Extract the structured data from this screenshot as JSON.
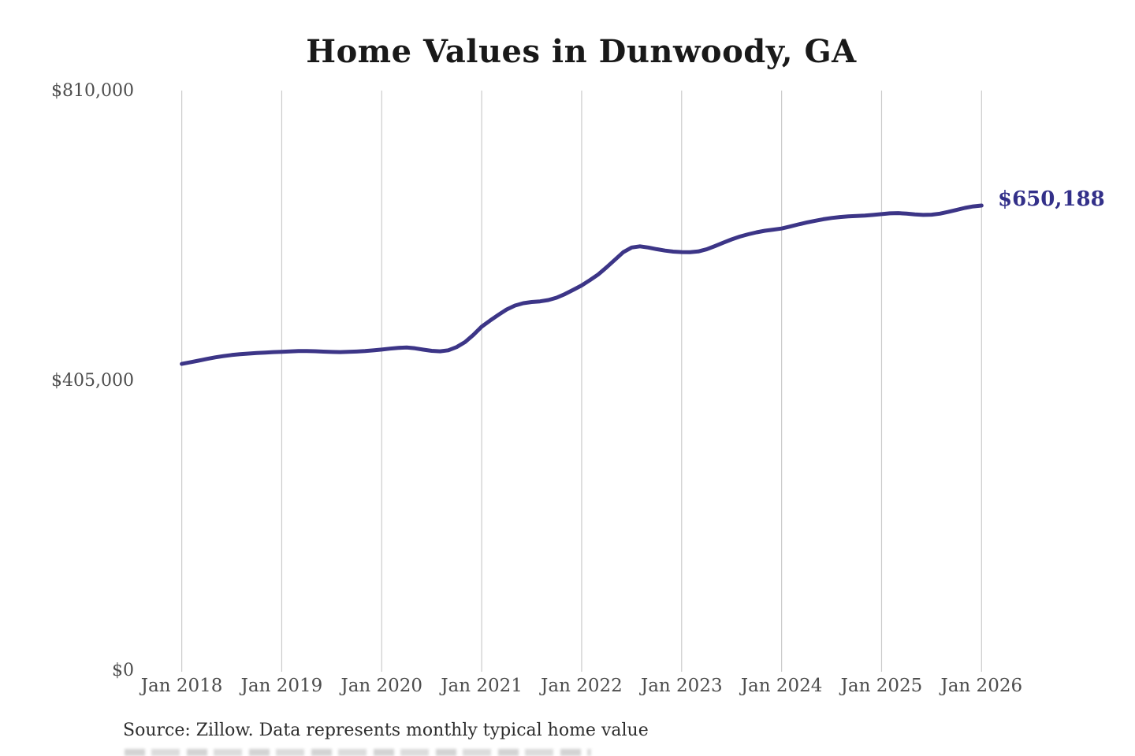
{
  "title": "Home Values in Dunwoody, GA",
  "annotation": {
    "latest_value_label": "$650,188"
  },
  "source_note": "Source: Zillow. Data represents monthly typical home value",
  "colors": {
    "background": "#ffffff",
    "line": "#3c3587",
    "annotation_text": "#333089",
    "gridline": "#cbcbcb",
    "title_text": "#191919",
    "axis_label_text": "#4d4d4d",
    "source_text": "#2e2e2e"
  },
  "chart_data": {
    "type": "line",
    "title": "Home Values in Dunwoody, GA",
    "xlabel": "",
    "ylabel": "",
    "frequency": "monthly",
    "x_start": "Jan 2018",
    "x_end": "Jan 2026",
    "x_tick_labels": [
      "Jan 2018",
      "Jan 2019",
      "Jan 2020",
      "Jan 2021",
      "Jan 2022",
      "Jan 2023",
      "Jan 2024",
      "Jan 2025",
      "Jan 2026"
    ],
    "y_ticks": [
      {
        "label": "$810,000",
        "value": 810000
      },
      {
        "label": "$405,000",
        "value": 405000
      },
      {
        "label": "$0",
        "value": 0
      }
    ],
    "ylim": [
      0,
      810000
    ],
    "grid": "vertical-only",
    "legend": "none",
    "latest_value": 650188,
    "series": [
      {
        "name": "Monthly typical home value",
        "values": [
          429000,
          431200,
          433500,
          436000,
          438100,
          439900,
          441400,
          442500,
          443400,
          444200,
          444900,
          445500,
          446000,
          446500,
          446900,
          447000,
          446700,
          446200,
          445700,
          445500,
          445800,
          446300,
          447000,
          447900,
          449000,
          450300,
          451400,
          451900,
          450800,
          448900,
          447300,
          446600,
          448100,
          452500,
          459500,
          469500,
          481000,
          489500,
          497500,
          505000,
          510500,
          513800,
          515400,
          516300,
          518200,
          521500,
          526500,
          532500,
          538500,
          546000,
          554000,
          564000,
          574500,
          585000,
          591500,
          593200,
          591500,
          589200,
          587200,
          585800,
          585200,
          585000,
          586000,
          589000,
          593500,
          598200,
          602800,
          606800,
          610000,
          612800,
          614900,
          616500,
          618000,
          620800,
          623800,
          626400,
          628800,
          631000,
          632800,
          634100,
          635000,
          635600,
          636100,
          637000,
          638200,
          639200,
          639600,
          638800,
          637700,
          637100,
          637400,
          638800,
          641200,
          644000,
          646800,
          648900,
          650188
        ]
      }
    ]
  }
}
